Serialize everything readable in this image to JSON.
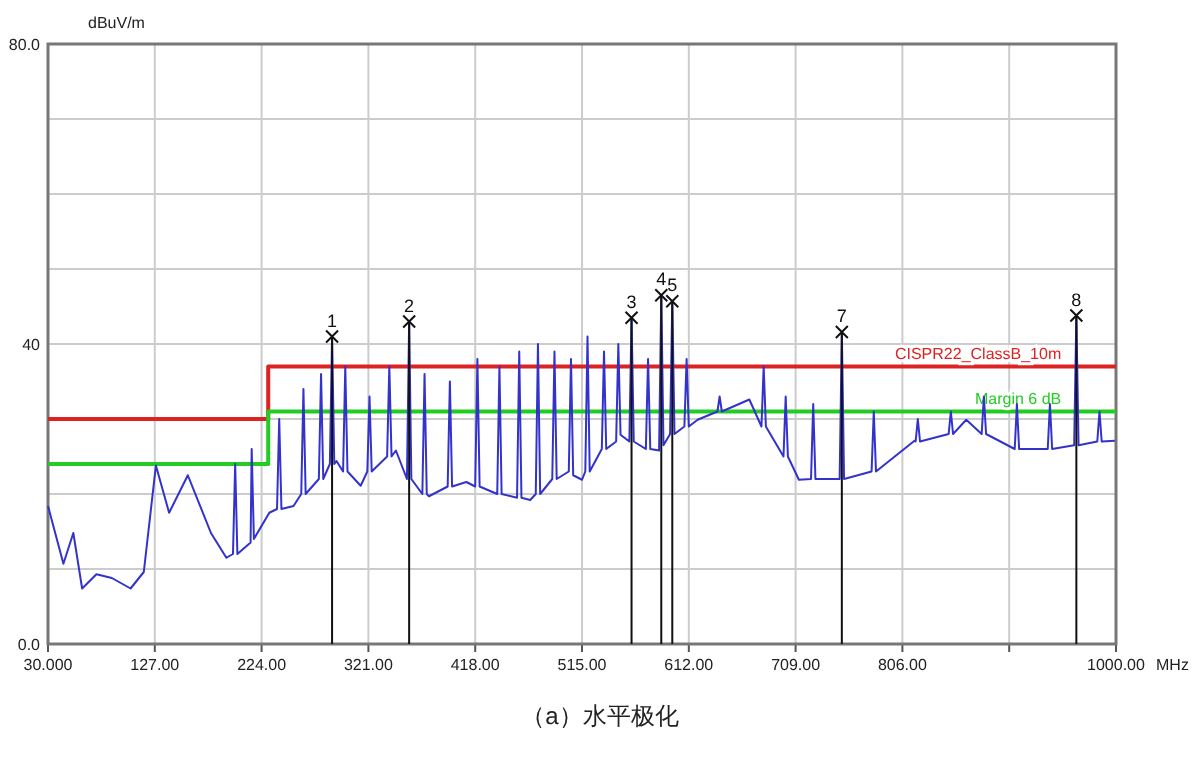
{
  "chart_data": {
    "type": "line",
    "xlabel": "MHz",
    "ylabel": "dBuV/m",
    "xlim": [
      30,
      1000
    ],
    "ylim": [
      0,
      80
    ],
    "xticks": [
      {
        "value": 30,
        "label": "30.000"
      },
      {
        "value": 127,
        "label": "127.00"
      },
      {
        "value": 224,
        "label": "224.00"
      },
      {
        "value": 321,
        "label": "321.00"
      },
      {
        "value": 418,
        "label": "418.00"
      },
      {
        "value": 515,
        "label": "515.00"
      },
      {
        "value": 612,
        "label": "612.00"
      },
      {
        "value": 709,
        "label": "709.00"
      },
      {
        "value": 806,
        "label": "806.00"
      },
      {
        "value": 903,
        "label": null
      },
      {
        "value": 1000,
        "label": "1000.00"
      }
    ],
    "yticks": [
      {
        "value": 0,
        "label": "0.0"
      },
      {
        "value": 10,
        "label": null
      },
      {
        "value": 20,
        "label": null
      },
      {
        "value": 30,
        "label": null
      },
      40,
      {
        "value": 50,
        "label": null
      },
      {
        "value": 60,
        "label": null
      },
      {
        "value": 70,
        "label": null
      },
      {
        "value": 80,
        "label": "80.0"
      }
    ],
    "grid": true,
    "series": [
      {
        "type": "step",
        "name": "CISPR22_ClassB_10m",
        "color": "#dd2222",
        "x": [
          30,
          230,
          1000
        ],
        "values": [
          30,
          37,
          37
        ]
      },
      {
        "type": "step",
        "name": "Margin 6 dB",
        "color": "#22cc22",
        "x": [
          30,
          230,
          1000
        ],
        "values": [
          24,
          31,
          31
        ]
      },
      {
        "color": "#3333cc",
        "x": [
          30,
          44,
          53,
          61,
          74,
          88,
          105,
          117,
          128,
          140,
          157,
          178,
          192,
          198,
          200,
          202,
          213,
          214,
          215,
          217,
          231,
          238,
          240,
          242,
          253,
          260,
          262,
          264,
          276,
          278,
          280,
          286,
          288,
          290,
          292,
          298,
          300,
          302,
          314,
          320,
          322,
          324,
          338,
          340,
          342,
          346,
          356,
          358,
          360,
          370,
          372,
          374,
          376,
          393,
          395,
          397,
          410,
          418,
          420,
          422,
          438,
          440,
          442,
          456,
          458,
          460,
          468,
          473,
          475,
          477,
          488,
          490,
          492,
          503,
          505,
          507,
          515,
          518,
          520,
          522,
          533,
          535,
          537,
          546,
          548,
          550,
          558,
          560,
          562,
          573,
          575,
          577,
          585,
          587,
          589,
          595,
          597,
          599,
          608,
          610,
          612,
          620,
          638,
          640,
          642,
          667,
          678,
          680,
          682,
          698,
          700,
          702,
          712,
          723,
          725,
          727,
          749,
          751,
          753,
          778,
          780,
          782,
          817,
          818,
          820,
          822,
          848,
          850,
          852,
          864,
          878,
          880,
          882,
          908,
          910,
          912,
          934,
          938,
          940,
          942,
          962,
          964,
          966,
          983,
          985,
          987,
          999
        ],
        "values": [
          18.4,
          10.7,
          14.8,
          7.4,
          9.3,
          8.8,
          7.4,
          9.6,
          23.8,
          17.5,
          22.5,
          14.8,
          11.5,
          12,
          24,
          12,
          13.4,
          13.5,
          26,
          14,
          17.5,
          18,
          30,
          18,
          18.4,
          20,
          34,
          20,
          22,
          36,
          22,
          24,
          41,
          24,
          24.4,
          23,
          37,
          23,
          21.1,
          23,
          33,
          23,
          25,
          37,
          25,
          25.8,
          22,
          43,
          22,
          20,
          36,
          20,
          19.7,
          21,
          35,
          21,
          21.6,
          21,
          38,
          21,
          20,
          37,
          20,
          19.5,
          39,
          19.5,
          19.2,
          20,
          40,
          20,
          22,
          39,
          22,
          23,
          38,
          22.5,
          21.9,
          23,
          41,
          23,
          26,
          39,
          26,
          27,
          40,
          27.9,
          27,
          43.5,
          27,
          26,
          38,
          26,
          25.8,
          46.5,
          26.5,
          28,
          45.7,
          28,
          29,
          38,
          29,
          29.9,
          31,
          33,
          31,
          32.6,
          29,
          37,
          29,
          25,
          33,
          25,
          21.9,
          22,
          32,
          22,
          22,
          41.6,
          22,
          23,
          31,
          23,
          27.1,
          27,
          30,
          27,
          28,
          31,
          28,
          29.9,
          28,
          33,
          28,
          26,
          32,
          26,
          26,
          26,
          32,
          26,
          26.5,
          43.8,
          26.5,
          27,
          31,
          27,
          27.1
        ]
      },
      {
        "type": "lollipop",
        "color": "#111111",
        "marker": "cross",
        "x": [
          288,
          358,
          560,
          587,
          597,
          751,
          964
        ],
        "values": [
          41,
          43,
          43.5,
          46.5,
          45.7,
          41.6,
          43.8
        ]
      }
    ],
    "annotations": [
      {
        "text": "1",
        "x": 288,
        "y": 41
      },
      {
        "text": "2",
        "x": 358,
        "y": 43
      },
      {
        "text": "3",
        "x": 560,
        "y": 43.5
      },
      {
        "text": "4",
        "x": 587,
        "y": 46.5
      },
      {
        "text": "5",
        "x": 597,
        "y": 45.7
      },
      {
        "text": "7",
        "x": 751,
        "y": 41.6
      },
      {
        "text": "8",
        "x": 964,
        "y": 43.8
      },
      "（a）水平极化"
    ]
  }
}
